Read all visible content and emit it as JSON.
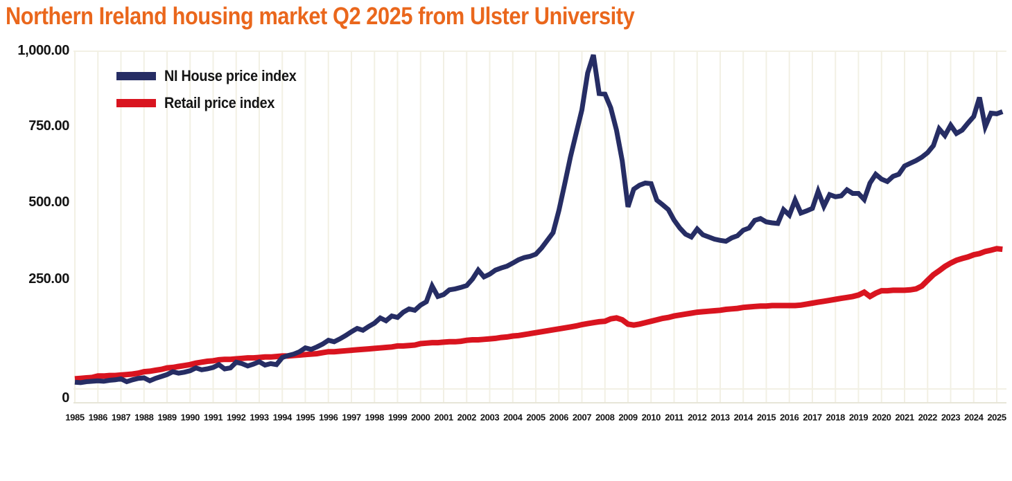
{
  "title": {
    "text": "Northern Ireland housing market Q2 2025 from Ulster University",
    "color": "#EA671C"
  },
  "colors": {
    "grid": "#F2F0E4",
    "axis_line": "#E7E5D8",
    "label": "#141414",
    "background": "#FFFFFF"
  },
  "chart_data": {
    "type": "line",
    "title": "Northern Ireland housing market Q2 2025 from Ulster University",
    "xlabel": "",
    "ylabel": "",
    "xlim": [
      1985,
      2025.5
    ],
    "ylim": [
      0,
      1000
    ],
    "grid": "vertical-only",
    "legend_position": "top-left-inside",
    "x_tick_labels": [
      "1985",
      "1986",
      "1987",
      "1988",
      "1989",
      "1990",
      "1991",
      "1992",
      "1993",
      "1994",
      "1995",
      "1996",
      "1997",
      "1998",
      "1999",
      "2000",
      "2001",
      "2002",
      "2003",
      "2004",
      "2005",
      "2006",
      "2007",
      "2008",
      "2009",
      "2010",
      "2011",
      "2012",
      "2013",
      "2014",
      "2015",
      "2016",
      "2017",
      "2018",
      "2019",
      "2020",
      "2021",
      "2022",
      "2023",
      "2024",
      "2025"
    ],
    "y_ticks": [
      {
        "value": 1000,
        "label": "1,000.00"
      },
      {
        "value": 750,
        "label": "750.00"
      },
      {
        "value": 500,
        "label": "500.00"
      },
      {
        "value": 250,
        "label": "250.00"
      },
      {
        "value": 0,
        "label": "0"
      }
    ],
    "series": [
      {
        "name": "Retail price index",
        "color": "#D9141F",
        "line_width": 8,
        "x_start": 1985,
        "x_step": 0.25,
        "values": [
          43,
          44,
          45,
          46,
          49,
          49,
          50,
          50,
          51,
          52,
          53,
          55,
          58,
          59,
          61,
          63,
          66,
          67,
          69,
          71,
          73,
          76,
          78,
          80,
          81,
          83,
          84,
          84,
          85,
          86,
          87,
          87,
          88,
          89,
          89,
          90,
          91,
          91,
          92,
          93,
          94,
          95,
          96,
          98,
          100,
          100,
          101,
          102,
          103,
          104,
          105,
          106,
          107,
          108,
          109,
          110,
          112,
          112,
          113,
          114,
          117,
          118,
          119,
          119,
          120,
          121,
          121,
          122,
          124,
          125,
          125,
          126,
          127,
          128,
          130,
          131,
          133,
          134,
          136,
          138,
          140,
          142,
          144,
          146,
          148,
          150,
          152,
          154,
          157,
          159,
          161,
          163,
          164,
          169,
          171,
          167,
          158,
          156,
          158,
          161,
          164,
          167,
          170,
          172,
          175,
          177,
          179,
          181,
          183,
          184,
          185,
          186,
          187,
          189,
          190,
          191,
          193,
          194,
          195,
          196,
          196,
          197,
          197,
          197,
          197,
          197,
          198,
          200,
          202,
          204,
          206,
          208,
          210,
          212,
          214,
          216,
          219,
          225,
          216,
          223,
          228,
          228,
          229,
          229,
          229,
          230,
          232,
          238,
          250,
          268,
          281,
          295,
          306,
          315,
          321,
          326,
          333,
          337,
          344,
          348,
          353,
          351
        ]
      },
      {
        "name": "NI House price index",
        "color": "#262D64",
        "line_width": 7,
        "x_start": 1985,
        "x_step": 0.25,
        "values": [
          36,
          35,
          37,
          38,
          39,
          38,
          40,
          41,
          43,
          37,
          41,
          44,
          45,
          39,
          44,
          48,
          52,
          58,
          55,
          57,
          60,
          66,
          62,
          64,
          67,
          73,
          64,
          66,
          78,
          75,
          70,
          74,
          79,
          72,
          75,
          73,
          88,
          92,
          95,
          100,
          108,
          105,
          110,
          116,
          124,
          121,
          127,
          134,
          142,
          149,
          145,
          153,
          160,
          171,
          165,
          175,
          172,
          183,
          190,
          187,
          198,
          205,
          238,
          216,
          220,
          230,
          232,
          235,
          239,
          254,
          283,
          261,
          270,
          283,
          290,
          296,
          306,
          317,
          324,
          328,
          335,
          355,
          380,
          405,
          477,
          563,
          652,
          730,
          808,
          930,
          990,
          862,
          860,
          815,
          741,
          640,
          489,
          547,
          560,
          567,
          565,
          511,
          496,
          480,
          446,
          420,
          400,
          391,
          417,
          398,
          391,
          384,
          380,
          377,
          388,
          395,
          413,
          420,
          445,
          451,
          440,
          437,
          435,
          480,
          462,
          511,
          469,
          476,
          484,
          540,
          491,
          529,
          522,
          525,
          545,
          533,
          533,
          513,
          567,
          596,
          580,
          572,
          589,
          596,
          623,
          632,
          641,
          652,
          667,
          690,
          745,
          723,
          757,
          730,
          741,
          764,
          786,
          849,
          752,
          797,
          795,
          802
        ]
      }
    ]
  },
  "legend": {
    "items": [
      {
        "label": "NI House price index",
        "color": "#262D64"
      },
      {
        "label": "Retail price index",
        "color": "#D9141F"
      }
    ]
  }
}
